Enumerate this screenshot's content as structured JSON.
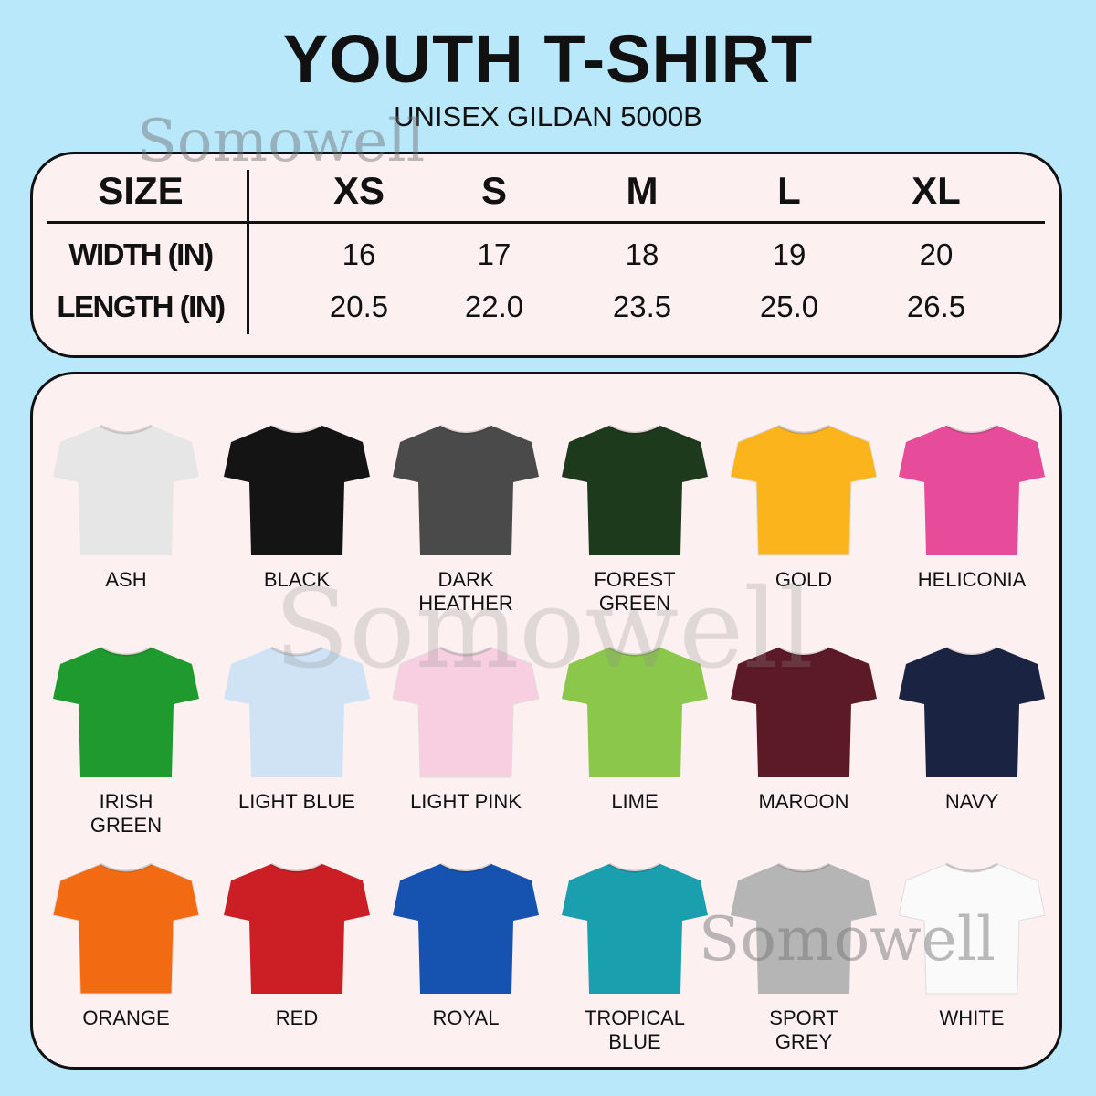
{
  "header": {
    "title": "YOUTH T-SHIRT",
    "subtitle": "UNISEX GILDAN 5000B"
  },
  "watermark": "Somowell",
  "size_table": {
    "header_label": "SIZE",
    "sizes": [
      "XS",
      "S",
      "M",
      "L",
      "XL"
    ],
    "rows": [
      {
        "label": "WIDTH (IN)",
        "values": [
          "16",
          "17",
          "18",
          "19",
          "20"
        ]
      },
      {
        "label": "LENGTH (IN)",
        "values": [
          "20.5",
          "22.0",
          "23.5",
          "25.0",
          "26.5"
        ]
      }
    ]
  },
  "colors": [
    {
      "name": "ASH",
      "hex": "#e6e6e6"
    },
    {
      "name": "BLACK",
      "hex": "#141414"
    },
    {
      "name": "DARK\nHEATHER",
      "hex": "#4a4a4a"
    },
    {
      "name": "FOREST\nGREEN",
      "hex": "#1d3a1d"
    },
    {
      "name": "GOLD",
      "hex": "#fbb41c"
    },
    {
      "name": "HELICONIA",
      "hex": "#e64c9a"
    },
    {
      "name": "IRISH\nGREEN",
      "hex": "#1f9a2e"
    },
    {
      "name": "LIGHT BLUE",
      "hex": "#cfe3f5"
    },
    {
      "name": "LIGHT PINK",
      "hex": "#f8cfe0"
    },
    {
      "name": "LIME",
      "hex": "#8bc74a"
    },
    {
      "name": "MAROON",
      "hex": "#5c1a26"
    },
    {
      "name": "NAVY",
      "hex": "#1b2342"
    },
    {
      "name": "ORANGE",
      "hex": "#f26b12"
    },
    {
      "name": "RED",
      "hex": "#cc1f25"
    },
    {
      "name": "ROYAL",
      "hex": "#1652b0"
    },
    {
      "name": "TROPICAL\nBLUE",
      "hex": "#1a9fae"
    },
    {
      "name": "SPORT\nGREY",
      "hex": "#b5b5b5"
    },
    {
      "name": "WHITE",
      "hex": "#fafafa"
    }
  ]
}
